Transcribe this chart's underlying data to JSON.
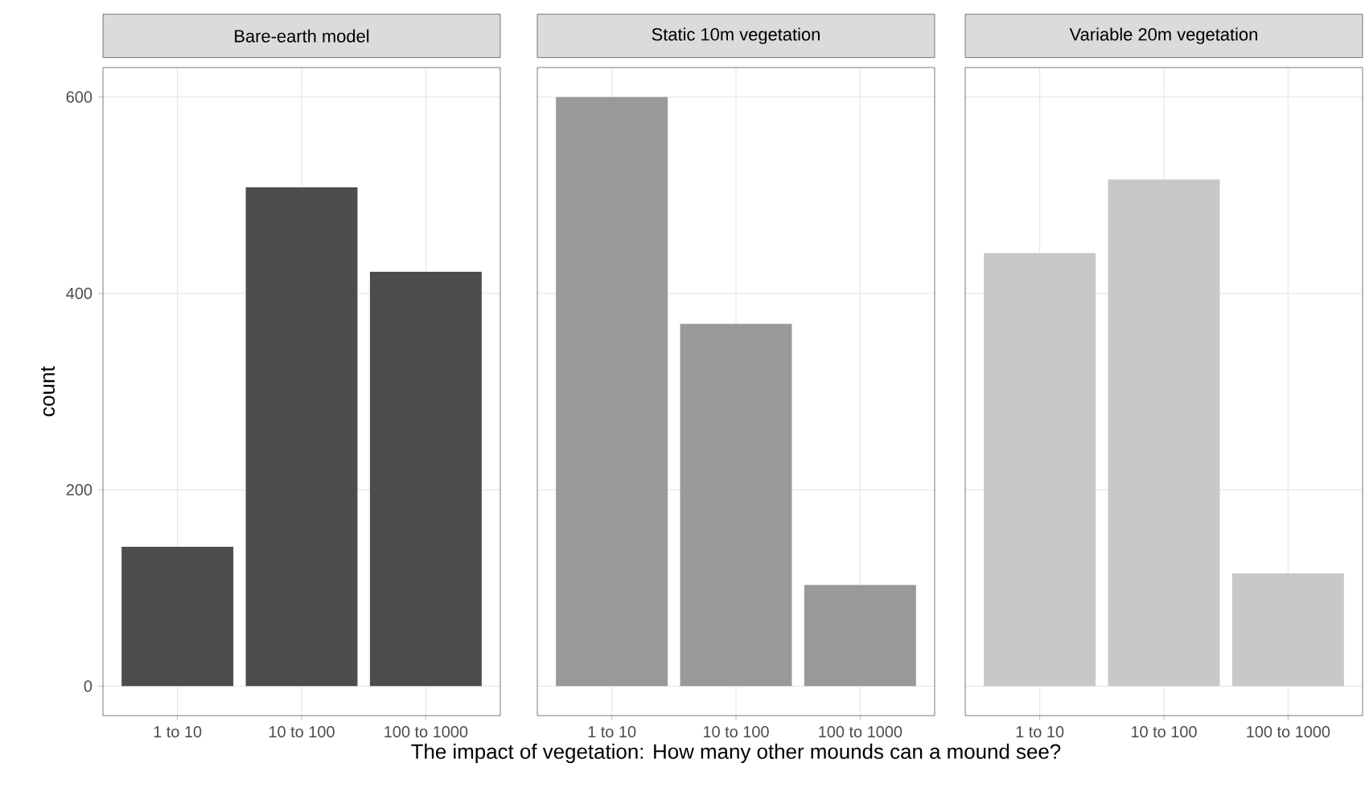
{
  "chart_data": [
    {
      "type": "bar",
      "title": "Bare-earth model",
      "ylabel": "count",
      "categories": [
        "1 to 10",
        "10 to 100",
        "100 to 1000"
      ],
      "values": [
        142,
        508,
        422
      ],
      "color": "#4d4d4d",
      "ylim": [
        -30,
        630
      ],
      "yticks": [
        0,
        200,
        400,
        600
      ],
      "grid": true
    },
    {
      "type": "bar",
      "title": "Static 10m vegetation",
      "xlabel": "The impact of vegetation: How many other mounds can a mound see?",
      "categories": [
        "1 to 10",
        "10 to 100",
        "100 to 1000"
      ],
      "values": [
        600,
        369,
        103
      ],
      "color": "#999999",
      "ylim": [
        -30,
        630
      ],
      "grid": true,
      "tick_labels": "x"
    },
    {
      "type": "bar",
      "title": "Variable 20m vegetation",
      "categories": [
        "1 to 10",
        "10 to 100",
        "100 to 1000"
      ],
      "values": [
        441,
        516,
        115
      ],
      "color": "#c8c8c8",
      "ylim": [
        -30,
        630
      ],
      "grid": true,
      "tick_labels": "x"
    }
  ]
}
